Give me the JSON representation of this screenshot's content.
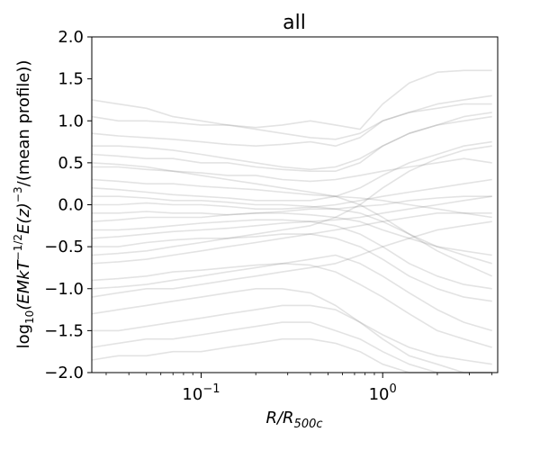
{
  "chart_data": {
    "type": "line",
    "title": "all",
    "xlabel_parts": {
      "main": "R/R",
      "sub": "500c"
    },
    "ylabel_parts": {
      "a": "log",
      "a_sub": "10",
      "b": "(EMkT",
      "b_sup": "−1/2",
      "c": "E(z)",
      "c_sup": "−3",
      "d": "/(mean profile))"
    },
    "xscale": "log",
    "xlim": [
      0.025,
      4.3
    ],
    "ylim": [
      -2.0,
      2.0
    ],
    "x_ticks": [
      {
        "value": 0.1,
        "base": "10",
        "exp": "−1"
      },
      {
        "value": 1,
        "base": "10",
        "exp": "0"
      }
    ],
    "y_ticks": [
      {
        "value": -2.0,
        "label": "−2.0"
      },
      {
        "value": -1.5,
        "label": "−1.5"
      },
      {
        "value": -1.0,
        "label": "−1.0"
      },
      {
        "value": -0.5,
        "label": "−0.5"
      },
      {
        "value": 0.0,
        "label": "0.0"
      },
      {
        "value": 0.5,
        "label": "0.5"
      },
      {
        "value": 1.0,
        "label": "1.0"
      },
      {
        "value": 1.5,
        "label": "1.5"
      },
      {
        "value": 2.0,
        "label": "2.0"
      }
    ],
    "grid": false,
    "line_color": "#808080",
    "line_alpha": 0.22,
    "x": [
      0.025,
      0.035,
      0.05,
      0.07,
      0.1,
      0.14,
      0.2,
      0.28,
      0.4,
      0.55,
      0.75,
      1.0,
      1.4,
      2.0,
      2.8,
      4.0
    ],
    "series": [
      {
        "values": [
          1.25,
          1.2,
          1.15,
          1.05,
          1.0,
          0.95,
          0.92,
          0.95,
          1.0,
          0.95,
          0.9,
          1.2,
          1.45,
          1.58,
          1.6,
          1.6
        ]
      },
      {
        "values": [
          1.05,
          1.0,
          1.0,
          0.98,
          0.95,
          0.95,
          0.9,
          0.85,
          0.8,
          0.78,
          0.85,
          1.0,
          1.1,
          1.2,
          1.25,
          1.3
        ]
      },
      {
        "values": [
          0.85,
          0.82,
          0.8,
          0.78,
          0.75,
          0.72,
          0.7,
          0.72,
          0.75,
          0.7,
          0.8,
          1.0,
          1.1,
          1.15,
          1.2,
          1.2
        ]
      },
      {
        "values": [
          0.6,
          0.58,
          0.55,
          0.55,
          0.5,
          0.5,
          0.45,
          0.42,
          0.4,
          0.4,
          0.5,
          0.7,
          0.85,
          0.95,
          1.0,
          1.05
        ]
      },
      {
        "values": [
          0.45,
          0.45,
          0.42,
          0.4,
          0.38,
          0.35,
          0.35,
          0.3,
          0.28,
          0.3,
          0.35,
          0.4,
          0.45,
          0.5,
          0.55,
          0.5
        ]
      },
      {
        "values": [
          0.3,
          0.28,
          0.25,
          0.25,
          0.22,
          0.2,
          0.18,
          0.15,
          0.12,
          0.1,
          0.08,
          0.05,
          0.0,
          -0.05,
          -0.1,
          -0.15
        ]
      },
      {
        "values": [
          0.2,
          0.18,
          0.15,
          0.12,
          0.1,
          0.08,
          0.05,
          0.05,
          0.05,
          0.1,
          0.2,
          0.35,
          0.5,
          0.6,
          0.7,
          0.75
        ]
      },
      {
        "values": [
          0.1,
          0.1,
          0.08,
          0.05,
          0.05,
          0.03,
          0.0,
          0.0,
          -0.02,
          -0.05,
          -0.1,
          -0.2,
          -0.35,
          -0.5,
          -0.6,
          -0.7
        ]
      },
      {
        "values": [
          0.0,
          0.0,
          0.02,
          0.0,
          0.0,
          -0.02,
          -0.05,
          -0.05,
          -0.03,
          0.0,
          0.05,
          0.1,
          0.15,
          0.2,
          0.25,
          0.3
        ]
      },
      {
        "values": [
          -0.1,
          -0.1,
          -0.08,
          -0.1,
          -0.1,
          -0.12,
          -0.1,
          -0.1,
          -0.12,
          -0.15,
          -0.2,
          -0.3,
          -0.4,
          -0.5,
          -0.55,
          -0.6
        ]
      },
      {
        "values": [
          -0.2,
          -0.18,
          -0.15,
          -0.15,
          -0.15,
          -0.12,
          -0.1,
          -0.08,
          -0.05,
          -0.05,
          -0.02,
          0.0,
          0.05,
          0.08,
          0.1,
          0.1
        ]
      },
      {
        "values": [
          -0.3,
          -0.3,
          -0.28,
          -0.25,
          -0.22,
          -0.2,
          -0.18,
          -0.18,
          -0.2,
          -0.25,
          -0.35,
          -0.5,
          -0.7,
          -0.85,
          -0.95,
          -1.0
        ]
      },
      {
        "values": [
          -0.4,
          -0.38,
          -0.35,
          -0.32,
          -0.3,
          -0.28,
          -0.25,
          -0.22,
          -0.2,
          -0.18,
          -0.15,
          -0.1,
          -0.05,
          0.0,
          0.05,
          0.1
        ]
      },
      {
        "values": [
          -0.5,
          -0.5,
          -0.45,
          -0.42,
          -0.4,
          -0.4,
          -0.38,
          -0.35,
          -0.35,
          -0.4,
          -0.5,
          -0.65,
          -0.85,
          -1.0,
          -1.1,
          -1.15
        ]
      },
      {
        "values": [
          -0.7,
          -0.68,
          -0.65,
          -0.6,
          -0.55,
          -0.5,
          -0.45,
          -0.4,
          -0.35,
          -0.3,
          -0.25,
          -0.2,
          -0.15,
          -0.1,
          -0.1,
          -0.1
        ]
      },
      {
        "values": [
          -0.9,
          -0.88,
          -0.85,
          -0.8,
          -0.78,
          -0.75,
          -0.72,
          -0.7,
          -0.72,
          -0.8,
          -0.95,
          -1.1,
          -1.3,
          -1.5,
          -1.6,
          -1.7
        ]
      },
      {
        "values": [
          -1.1,
          -1.05,
          -1.0,
          -1.0,
          -0.95,
          -0.9,
          -0.85,
          -0.8,
          -0.75,
          -0.7,
          -0.6,
          -0.5,
          -0.4,
          -0.3,
          -0.25,
          -0.2
        ]
      },
      {
        "values": [
          -1.3,
          -1.25,
          -1.2,
          -1.15,
          -1.1,
          -1.05,
          -1.0,
          -1.0,
          -1.05,
          -1.2,
          -1.4,
          -1.6,
          -1.8,
          -1.9,
          -2.0,
          -2.0
        ]
      },
      {
        "values": [
          -1.5,
          -1.5,
          -1.45,
          -1.4,
          -1.35,
          -1.3,
          -1.25,
          -1.2,
          -1.2,
          -1.25,
          -1.4,
          -1.55,
          -1.7,
          -1.8,
          -1.85,
          -1.9
        ]
      },
      {
        "values": [
          -1.7,
          -1.65,
          -1.6,
          -1.6,
          -1.55,
          -1.5,
          -1.45,
          -1.4,
          -1.4,
          -1.5,
          -1.6,
          -1.75,
          -1.9,
          -2.0,
          -2.0,
          -2.0
        ]
      },
      {
        "values": [
          -1.85,
          -1.8,
          -1.8,
          -1.75,
          -1.75,
          -1.7,
          -1.65,
          -1.6,
          -1.6,
          -1.65,
          -1.75,
          -1.9,
          -2.0,
          -2.0,
          -2.0,
          -2.0
        ]
      },
      {
        "values": [
          0.5,
          0.48,
          0.45,
          0.4,
          0.35,
          0.3,
          0.25,
          0.2,
          0.15,
          0.1,
          0.0,
          -0.15,
          -0.35,
          -0.55,
          -0.7,
          -0.85
        ]
      },
      {
        "values": [
          -0.6,
          -0.58,
          -0.55,
          -0.5,
          -0.45,
          -0.4,
          -0.35,
          -0.3,
          -0.25,
          -0.15,
          0.0,
          0.2,
          0.4,
          0.55,
          0.65,
          0.7
        ]
      },
      {
        "values": [
          0.7,
          0.7,
          0.68,
          0.65,
          0.6,
          0.55,
          0.5,
          0.45,
          0.42,
          0.45,
          0.55,
          0.7,
          0.85,
          0.95,
          1.05,
          1.1
        ]
      },
      {
        "values": [
          -1.0,
          -0.98,
          -0.95,
          -0.9,
          -0.85,
          -0.8,
          -0.75,
          -0.7,
          -0.65,
          -0.6,
          -0.7,
          -0.85,
          -1.05,
          -1.25,
          -1.4,
          -1.5
        ]
      }
    ]
  }
}
